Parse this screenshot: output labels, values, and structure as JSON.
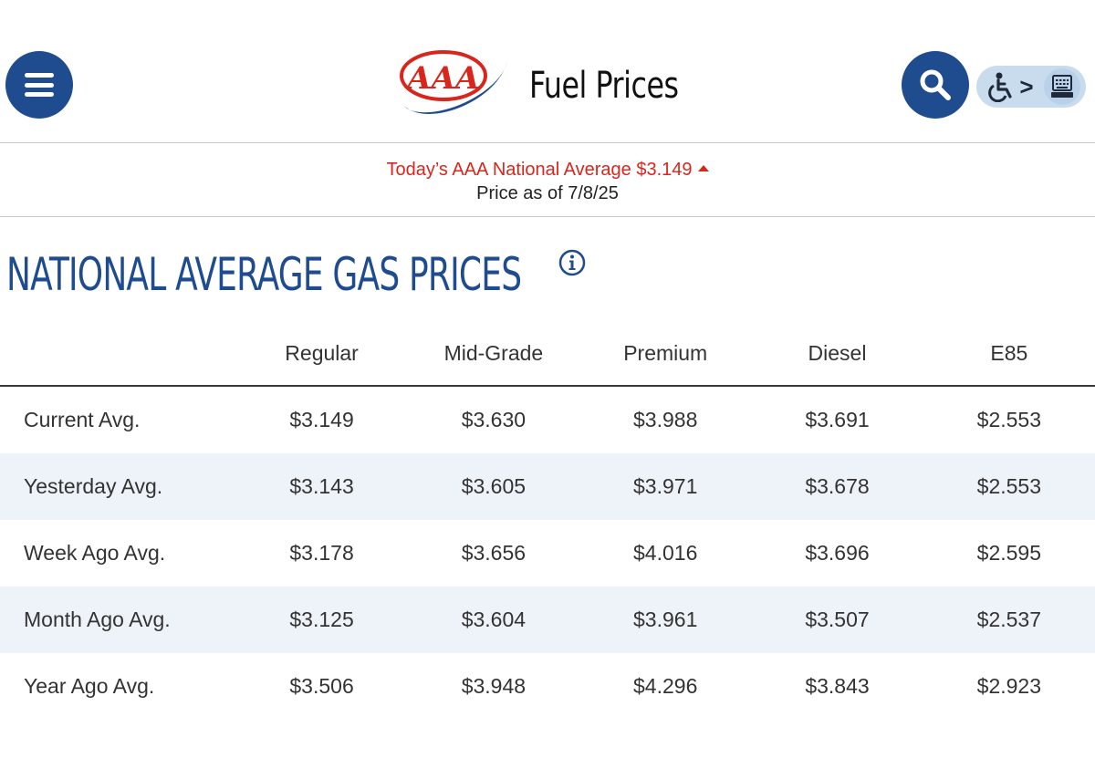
{
  "header": {
    "title": "Fuel Prices",
    "logo_text": "AAA",
    "menu_icon": "hamburger-menu-icon",
    "search_icon": "search-icon",
    "accessibility_icons": [
      "wheelchair-icon",
      "keyboard-icon"
    ],
    "accessibility_separator": ">"
  },
  "banner": {
    "national_average": "Today’s AAA National Average $3.149",
    "trend": "up",
    "price_as_of": "Price as of 7/8/25"
  },
  "section": {
    "title": "NATIONAL AVERAGE GAS PRICES",
    "info_icon": "info-icon"
  },
  "table": {
    "columns": [
      "Regular",
      "Mid-Grade",
      "Premium",
      "Diesel",
      "E85"
    ],
    "rows": [
      {
        "label": "Current Avg.",
        "values": [
          "$3.149",
          "$3.630",
          "$3.988",
          "$3.691",
          "$2.553"
        ]
      },
      {
        "label": "Yesterday Avg.",
        "values": [
          "$3.143",
          "$3.605",
          "$3.971",
          "$3.678",
          "$2.553"
        ]
      },
      {
        "label": "Week Ago Avg.",
        "values": [
          "$3.178",
          "$3.656",
          "$4.016",
          "$3.696",
          "$2.595"
        ]
      },
      {
        "label": "Month Ago Avg.",
        "values": [
          "$3.125",
          "$3.604",
          "$3.961",
          "$3.507",
          "$2.537"
        ]
      },
      {
        "label": "Year Ago Avg.",
        "values": [
          "$3.506",
          "$3.948",
          "$4.296",
          "$3.843",
          "$2.923"
        ]
      }
    ]
  },
  "colors": {
    "brand_blue": "#1f4c8e",
    "aaa_red": "#d9261c",
    "row_shade": "#eef3f9",
    "toggle_bg": "#c9dced"
  }
}
